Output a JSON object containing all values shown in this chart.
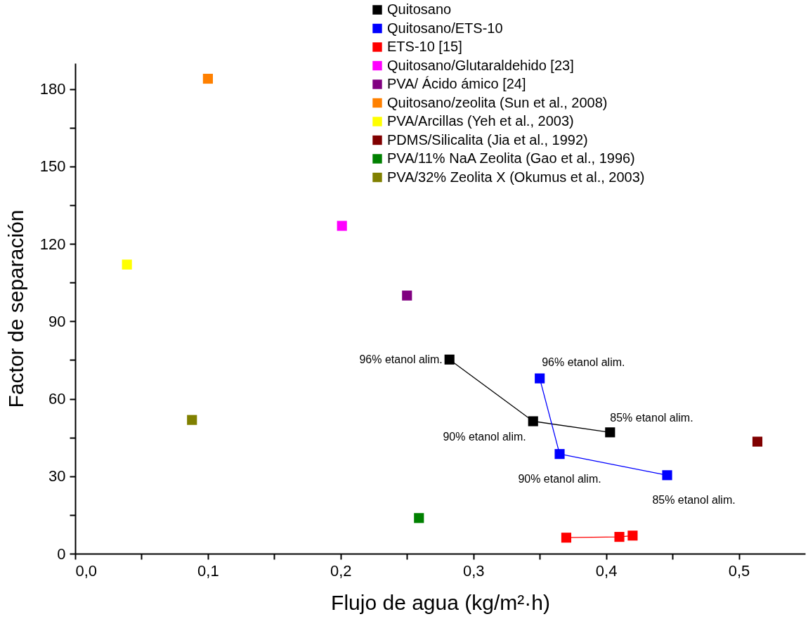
{
  "chart_data": {
    "type": "scatter",
    "xlabel": "Flujo de agua (kg/m²·h)",
    "ylabel": "Factor de separación",
    "xlim": [
      0,
      0.55
    ],
    "ylim": [
      0,
      190
    ],
    "xticks": [
      {
        "value": 0,
        "label": "0,0"
      },
      {
        "value": 0.05,
        "label": null
      },
      {
        "value": 0.1,
        "label": "0,1"
      },
      {
        "value": 0.15,
        "label": null
      },
      {
        "value": 0.2,
        "label": "0,2"
      },
      {
        "value": 0.25,
        "label": null
      },
      {
        "value": 0.3,
        "label": "0,3"
      },
      {
        "value": 0.35,
        "label": null
      },
      {
        "value": 0.4,
        "label": "0,4"
      },
      {
        "value": 0.45,
        "label": null
      },
      {
        "value": 0.5,
        "label": "0,5"
      }
    ],
    "yticks": [
      0,
      {
        "value": 15,
        "label": null
      },
      30,
      {
        "value": 45,
        "label": null
      },
      60,
      {
        "value": 75,
        "label": null
      },
      90,
      {
        "value": 105,
        "label": null
      },
      120,
      {
        "value": 135,
        "label": null
      },
      150,
      {
        "value": 165,
        "label": null
      },
      180
    ],
    "grid": false,
    "legend": "top right",
    "marker": "square",
    "series": [
      {
        "name": "Quitosano",
        "type": "line",
        "color": "#000000",
        "x": [
          0.282,
          0.345,
          0.403
        ],
        "values": [
          75.2,
          51.3,
          47.0
        ]
      },
      {
        "name": "Quitosano/ETS-10",
        "type": "line",
        "color": "#0000ff",
        "x": [
          0.35,
          0.365,
          0.446
        ],
        "values": [
          67.9,
          38.6,
          30.4
        ]
      },
      {
        "name": "ETS-10 [15]",
        "type": "line",
        "color": "#ff0000",
        "x": [
          0.37,
          0.41,
          0.42
        ],
        "values": [
          6.2,
          6.5,
          7.0
        ]
      },
      {
        "name": "Quitosano/Glutaraldehido [23]",
        "color": "#ff00ff",
        "x": [
          0.201
        ],
        "values": [
          127
        ]
      },
      {
        "name": "PVA/ Ácido ámico [24]",
        "color": "#800080",
        "x": [
          0.25
        ],
        "values": [
          100
        ]
      },
      {
        "name": "Quitosano/zeolita (Sun et al., 2008)",
        "color": "#ff8000",
        "x": [
          0.1
        ],
        "values": [
          184
        ]
      },
      {
        "name": "PVA/Arcillas (Yeh et al., 2003)",
        "color": "#ffff00",
        "x": [
          0.039
        ],
        "values": [
          112
        ]
      },
      {
        "name": "PDMS/Silicalita (Jia et al., 1992)",
        "color": "#800000",
        "x": [
          0.514
        ],
        "values": [
          43.4
        ]
      },
      {
        "name": "PVA/11% NaA Zeolita (Gao et al., 1996)",
        "color": "#008000",
        "x": [
          0.259
        ],
        "values": [
          13.8
        ]
      },
      {
        "name": "PVA/32% Zeolita X (Okumus et al., 2003)",
        "color": "#808000",
        "x": [
          0.088
        ],
        "values": [
          51.8
        ]
      }
    ],
    "annotations": [
      {
        "text": "96% etanol alim.",
        "x": 0.282,
        "y": 75.2
      },
      {
        "text": "90% etanol alim.",
        "x": 0.345,
        "y": 51.3
      },
      {
        "text": "85% etanol alim.",
        "x": 0.403,
        "y": 47.0
      },
      {
        "text": "96% etanol alim.",
        "x": 0.35,
        "y": 67.9
      },
      {
        "text": "90% etanol alim.",
        "x": 0.365,
        "y": 38.6
      },
      {
        "text": "85% etanol alim.",
        "x": 0.446,
        "y": 30.4
      }
    ]
  }
}
